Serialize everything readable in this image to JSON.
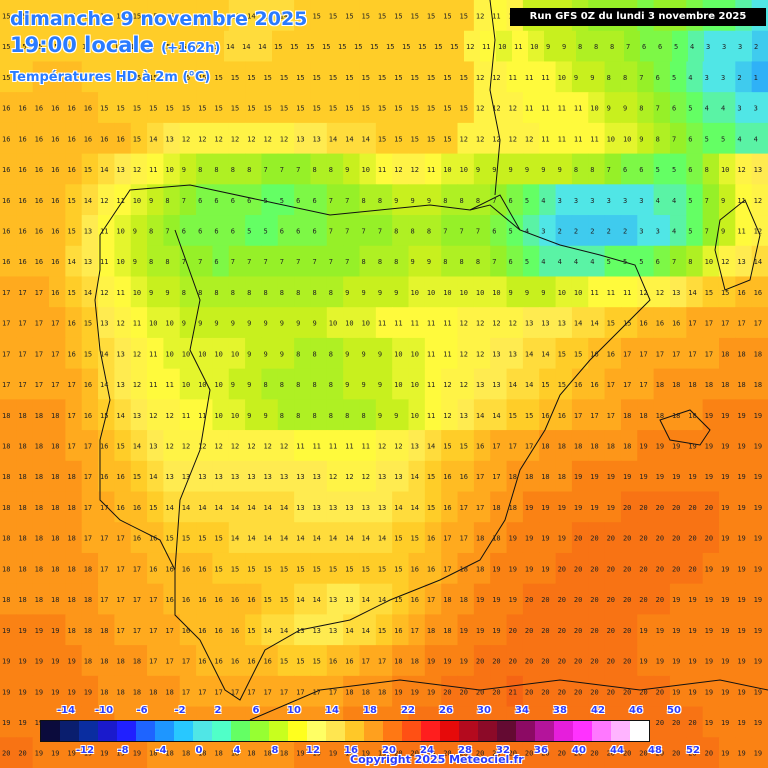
{
  "header": {
    "date": "dimanche 9 novembre 2025",
    "time": "19:00 locale",
    "lead": "(+162h)",
    "field": "Températures HD à 2m (°C)",
    "run": "Run GFS 0Z du lundi 3 novembre 2025"
  },
  "footer": {
    "copyright": "Copyright 2025 Meteociel.fr"
  },
  "legend": {
    "upper_ticks": [
      "-14",
      "-10",
      "-6",
      "-2",
      "2",
      "6",
      "10",
      "14",
      "18",
      "22",
      "26",
      "30",
      "34",
      "38",
      "42",
      "46",
      "50"
    ],
    "lower_ticks": [
      "-12",
      "-8",
      "-4",
      "0",
      "4",
      "8",
      "12",
      "16",
      "20",
      "24",
      "28",
      "32",
      "36",
      "40",
      "44",
      "48",
      "52"
    ],
    "colors": [
      "#0b0b3c",
      "#0a1e6e",
      "#0a2da0",
      "#1a1acc",
      "#2020ff",
      "#1e64ff",
      "#1e96ff",
      "#28c8ff",
      "#50e6e6",
      "#50ffc8",
      "#64ff64",
      "#96ff32",
      "#c8ff1e",
      "#ffff1e",
      "#ffff64",
      "#ffe650",
      "#ffc828",
      "#ffa01e",
      "#ff7814",
      "#ff5014",
      "#ff1e1e",
      "#e60a0a",
      "#b40a1e",
      "#8c0a28",
      "#640a32",
      "#8c0a64",
      "#b4149b",
      "#e61edc",
      "#ff32ff",
      "#ff78ff",
      "#ffb4ff",
      "#ffffff"
    ]
  },
  "map": {
    "temperature_grid": [
      "15 15 15 15 15 15 15 15 15 15 15 15 15 15 14 14 14 14 15 15 15 15 15 15 15 15 15 15 15 12 11 12 9 9 9 8 7 7 7 6 7 7 6 5 5 4 3",
      "15 15 15 15 15 15 15 15 15 15 15 15 15 15 14 14 14 15 15 15 15 15 15 15 15 15 15 15 15 12 11 10 11 10 9 9 8 8 8 7 6 6 5 4 3 3 3 2",
      "15 15 16 16 16 15 15 15 15 15 15 15 15 15 15 15 15 15 15 15 15 15 15 15 15 15 15 15 15 12 12 11 11 11 10 9 9 8 8 7 6 5 4 3 3 2 1",
      "16 16 16 16 16 16 15 15 15 15 15 15 15 15 15 15 15 15 15 15 15 15 15 15 15 15 15 15 15 12 12 12 11 11 11 11 10 9 9 8 7 6 5 4 4 3 3",
      "16 16 16 16 16 16 16 16 15 14 13 12 12 12 12 12 12 12 13 13 14 14 14 15 15 15 15 15 12 12 12 12 12 11 11 11 11 10 10 9 8 7 6 5 5 4 4",
      "16 16 16 16 16 15 14 13 12 11 10 9 8 8 8 8 7 7 7 8 8 9 10 11 12 12 11 10 10 9 9 9 9 9 9 8 8 7 6 6 5 5 6 8 10 12 13",
      "16 16 16 16 15 14 12 11 10 9 8 7 6 6 6 6 5 5 6 6 7 7 8 8 9 9 9 8 8 8 7 6 5 4 3 3 3 3 3 3 4 4 5 7 9 11 12",
      "16 16 16 16 15 13 11 10 9 8 7 6 6 6 6 5 5 6 6 6 7 7 7 7 8 8 8 7 7 7 6 5 4 3 2 2 2 2 2 3 3 4 5 7 9 11 12",
      "16 16 16 16 14 13 11 10 9 8 8 7 7 6 7 7 7 7 7 7 7 7 8 8 8 9 9 8 8 8 7 6 5 4 4 4 4 5 5 5 6 7 8 10 12 13 14",
      "17 17 17 16 15 14 12 11 10 9 9 8 8 8 8 8 8 8 8 8 8 9 9 9 9 10 10 10 10 10 10 9 9 9 10 10 11 11 11 12 12 13 14 15 15 16 16",
      "17 17 17 17 16 15 13 12 11 10 10 9 9 9 9 9 9 9 9 9 10 10 10 11 11 11 11 11 12 12 12 12 13 13 13 14 14 15 15 16 16 16 17 17 17 17 17",
      "17 17 17 17 16 15 14 13 12 11 10 10 10 10 10 9 9 9 8 8 8 9 9 9 10 10 11 11 12 12 13 13 14 14 15 15 16 16 17 17 17 17 17 17 18 18 18",
      "17 17 17 17 17 16 14 13 12 11 11 10 10 10 9 9 8 8 8 8 8 9 9 9 10 10 11 12 12 13 13 14 14 15 15 16 16 17 17 17 18 18 18 18 18 18 18",
      "18 18 18 18 17 16 15 14 13 12 12 11 11 10 10 9 9 8 8 8 8 8 8 9 9 10 11 12 13 14 14 15 15 16 16 17 17 17 18 18 18 18 18 19 19 19 19",
      "18 18 18 18 17 17 16 15 14 13 12 12 12 12 12 12 12 12 11 11 11 11 11 12 12 13 14 15 15 16 17 17 17 18 18 18 18 18 18 19 19 19 19 19 19 19 19",
      "18 18 18 18 18 17 16 16 15 14 13 13 13 13 13 13 13 13 13 13 12 12 12 13 13 14 15 16 16 17 17 18 18 18 18 19 19 19 19 19 19 19 19 19 19 19 19",
      "18 18 18 18 18 17 17 16 16 15 14 14 14 14 14 14 14 14 13 13 13 13 13 13 14 14 15 16 17 17 18 18 19 19 19 19 19 19 20 20 20 20 20 20 19 19 19",
      "18 18 18 18 18 17 17 17 16 16 15 15 15 15 14 14 14 14 14 14 14 14 14 14 15 15 16 17 17 18 18 19 19 19 19 20 20 20 20 20 20 20 20 20 19 19 19",
      "18 18 18 18 18 18 17 17 17 16 16 16 16 15 15 15 15 15 15 15 15 15 15 15 15 16 16 17 18 18 19 19 19 19 20 20 20 20 20 20 20 20 20 19 19 19 19",
      "18 18 18 18 18 18 17 17 17 17 16 16 16 16 16 16 15 15 14 14 13 13 14 14 15 16 17 18 18 19 19 19 20 20 20 20 20 20 20 20 20 19 19 19 19 19 19",
      "19 19 19 19 18 18 18 17 17 17 17 16 16 16 16 15 14 14 13 13 13 14 14 15 16 17 18 18 19 19 19 20 20 20 20 20 20 20 20 19 19 19 19 19 19 19 19",
      "19 19 19 19 19 18 18 18 18 17 17 17 16 16 16 16 16 15 15 15 16 16 17 17 18 18 19 19 19 20 20 20 20 20 20 20 20 20 20 19 19 19 19 19 19 19 19",
      "19 19 19 19 19 19 18 18 18 18 18 17 17 17 17 17 17 17 17 17 17 18 18 18 19 19 19 20 20 20 20 21 20 20 20 20 20 20 20 20 20 19 19 19 19 19 19",
      "19 19 19 19 19 19 19 18 18 18 18 18 18 18 18 18 18 18 18 18 18 19 19 19 19 20 20 20 20 20 20 20 20 20 20 20 20 20 20 20 20 20 20 19 19 19 19",
      "20 20 19 19 19 19 19 19 19 18 18 18 18 18 18 18 18 18 19 19 19 19 19 19 20 20 20 20 20 20 20 20 20 20 20 20 20 20 20 20 20 20 20 20 19 19 19"
    ]
  }
}
